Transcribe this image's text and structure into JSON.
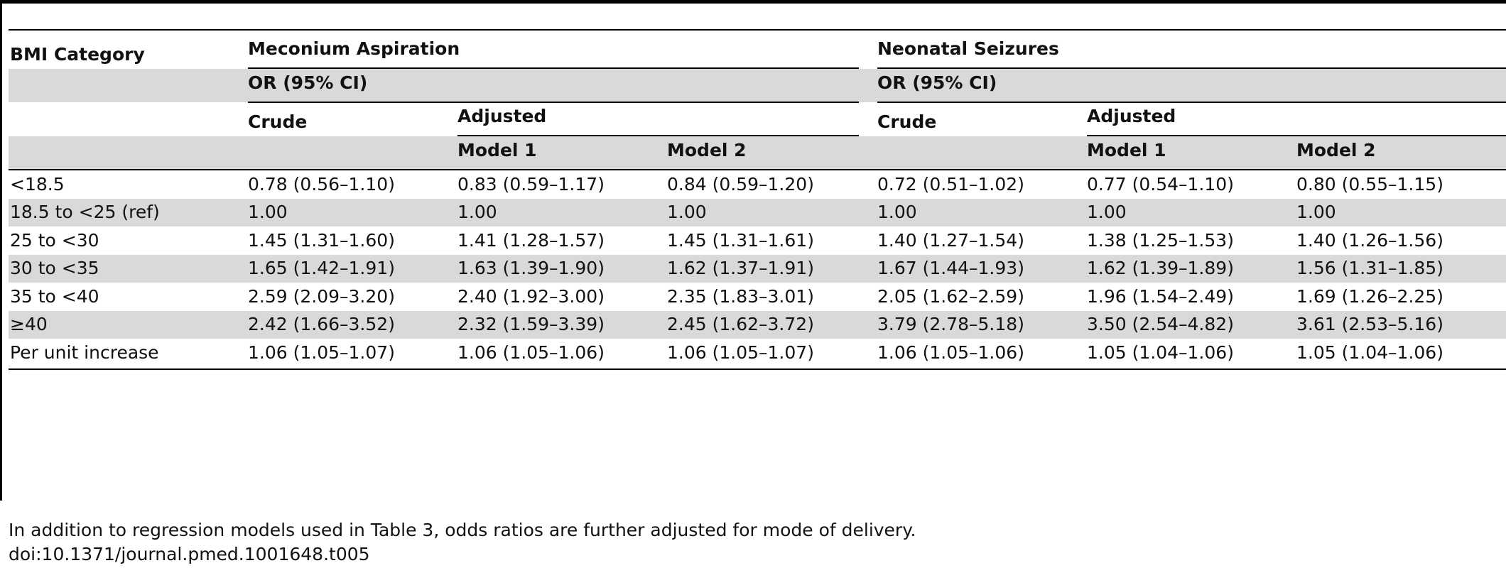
{
  "table": {
    "headers": {
      "bmi_category": "BMI Category",
      "group1": "Meconium Aspiration",
      "group2": "Neonatal Seizures",
      "or_label": "OR (95% CI)",
      "crude": "Crude",
      "adjusted": "Adjusted",
      "model1": "Model 1",
      "model2": "Model 2"
    },
    "rows": [
      {
        "category": "<18.5",
        "cells": [
          "0.78 (0.56–1.10)",
          "0.83 (0.59–1.17)",
          "0.84 (0.59–1.20)",
          "0.72 (0.51–1.02)",
          "0.77 (0.54–1.10)",
          "0.80 (0.55–1.15)"
        ]
      },
      {
        "category": "18.5 to <25 (ref)",
        "cells": [
          "1.00",
          "1.00",
          "1.00",
          "1.00",
          "1.00",
          "1.00"
        ]
      },
      {
        "category": "25 to <30",
        "cells": [
          "1.45 (1.31–1.60)",
          "1.41 (1.28–1.57)",
          "1.45 (1.31–1.61)",
          "1.40 (1.27–1.54)",
          "1.38 (1.25–1.53)",
          "1.40 (1.26–1.56)"
        ]
      },
      {
        "category": "30 to <35",
        "cells": [
          "1.65 (1.42–1.91)",
          "1.63 (1.39–1.90)",
          "1.62 (1.37–1.91)",
          "1.67 (1.44–1.93)",
          "1.62 (1.39–1.89)",
          "1.56 (1.31–1.85)"
        ]
      },
      {
        "category": "35 to <40",
        "cells": [
          "2.59 (2.09–3.20)",
          "2.40 (1.92–3.00)",
          "2.35 (1.83–3.01)",
          "2.05 (1.62–2.59)",
          "1.96 (1.54–2.49)",
          "1.69 (1.26–2.25)"
        ]
      },
      {
        "category": "≥40",
        "cells": [
          "2.42 (1.66–3.52)",
          "2.32 (1.59–3.39)",
          "2.45 (1.62–3.72)",
          "3.79 (2.78–5.18)",
          "3.50 (2.54–4.82)",
          "3.61 (2.53–5.16)"
        ]
      },
      {
        "category": "Per unit increase",
        "cells": [
          "1.06 (1.05–1.07)",
          "1.06 (1.05–1.06)",
          "1.06 (1.05–1.07)",
          "1.06 (1.05–1.06)",
          "1.05 (1.04–1.06)",
          "1.05 (1.04–1.06)"
        ]
      }
    ]
  },
  "footnote": "In addition to regression models used in Table 3, odds ratios are further adjusted for mode of delivery.",
  "doi": "doi:10.1371/journal.pmed.1001648.t005"
}
